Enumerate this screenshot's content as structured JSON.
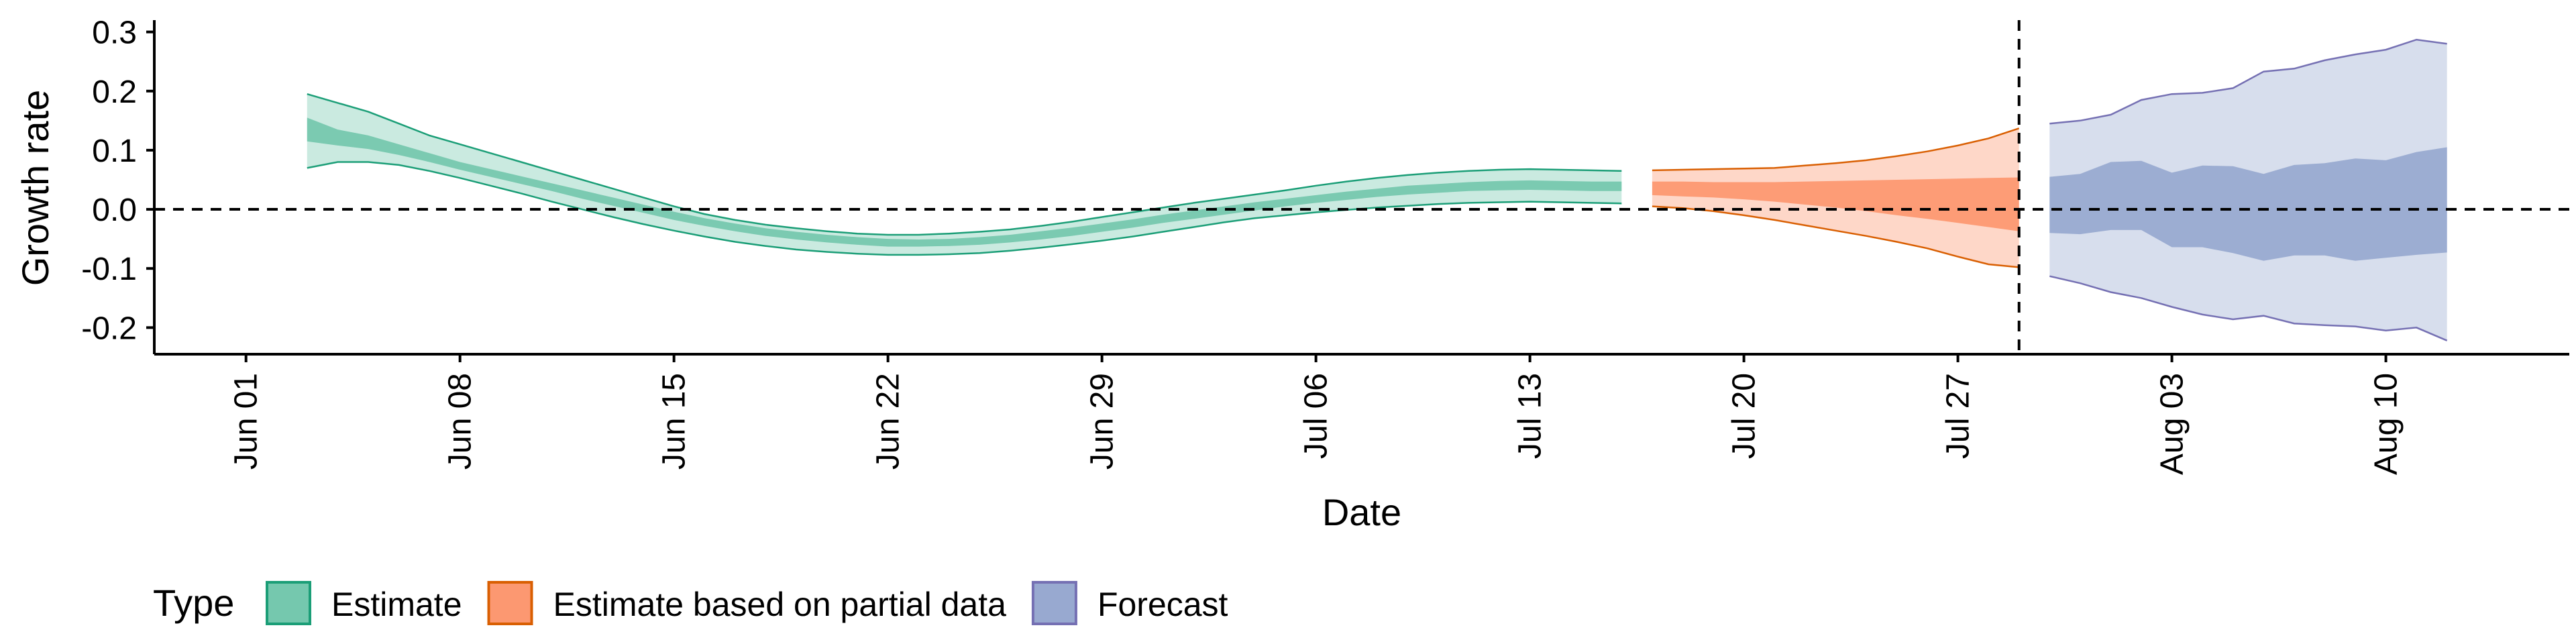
{
  "chart_data": {
    "type": "area",
    "xlabel": "Date",
    "ylabel": "Growth rate",
    "legend_title": "Type",
    "legend_position": "bottom",
    "xlim": [
      "2020-05-29",
      "2020-08-16"
    ],
    "ylim": [
      -0.245,
      0.32
    ],
    "x_ticks": [
      "2020-06-01",
      "2020-06-08",
      "2020-06-15",
      "2020-06-22",
      "2020-06-29",
      "2020-07-06",
      "2020-07-13",
      "2020-07-20",
      "2020-07-27",
      "2020-08-03",
      "2020-08-10"
    ],
    "x_tick_labels": [
      "Jun 01",
      "Jun 08",
      "Jun 15",
      "Jun 22",
      "Jun 29",
      "Jul 06",
      "Jul 13",
      "Jul 20",
      "Jul 27",
      "Aug 03",
      "Aug 10"
    ],
    "y_ticks": [
      -0.2,
      -0.1,
      0.0,
      0.1,
      0.2,
      0.3
    ],
    "y_tick_labels": [
      "-0.2",
      "-0.1",
      "0.0",
      "0.1",
      "0.2",
      "0.3"
    ],
    "reference_lines": {
      "horizontal_y": 0.0,
      "vertical_x": "2020-07-29"
    },
    "series": [
      {
        "name": "Estimate",
        "color": "#1b9e77",
        "fill_color": "#66c2a5",
        "x": [
          "2020-06-03",
          "2020-06-04",
          "2020-06-05",
          "2020-06-06",
          "2020-06-07",
          "2020-06-08",
          "2020-06-09",
          "2020-06-10",
          "2020-06-11",
          "2020-06-12",
          "2020-06-13",
          "2020-06-14",
          "2020-06-15",
          "2020-06-16",
          "2020-06-17",
          "2020-06-18",
          "2020-06-19",
          "2020-06-20",
          "2020-06-21",
          "2020-06-22",
          "2020-06-23",
          "2020-06-24",
          "2020-06-25",
          "2020-06-26",
          "2020-06-27",
          "2020-06-28",
          "2020-06-29",
          "2020-06-30",
          "2020-07-01",
          "2020-07-02",
          "2020-07-03",
          "2020-07-04",
          "2020-07-05",
          "2020-07-06",
          "2020-07-07",
          "2020-07-08",
          "2020-07-09",
          "2020-07-10",
          "2020-07-11",
          "2020-07-12",
          "2020-07-13",
          "2020-07-14",
          "2020-07-15",
          "2020-07-16"
        ],
        "upper_90": [
          0.195,
          0.18,
          0.165,
          0.145,
          0.125,
          0.11,
          0.095,
          0.08,
          0.065,
          0.05,
          0.035,
          0.02,
          0.005,
          -0.008,
          -0.018,
          -0.026,
          -0.032,
          -0.037,
          -0.041,
          -0.043,
          -0.043,
          -0.041,
          -0.038,
          -0.034,
          -0.028,
          -0.021,
          -0.013,
          -0.005,
          0.003,
          0.011,
          0.018,
          0.025,
          0.032,
          0.04,
          0.047,
          0.053,
          0.058,
          0.062,
          0.065,
          0.067,
          0.068,
          0.067,
          0.066,
          0.065
        ],
        "upper_50": [
          0.155,
          0.135,
          0.125,
          0.11,
          0.095,
          0.08,
          0.068,
          0.056,
          0.044,
          0.032,
          0.02,
          0.008,
          -0.004,
          -0.015,
          -0.024,
          -0.032,
          -0.038,
          -0.043,
          -0.047,
          -0.05,
          -0.051,
          -0.05,
          -0.047,
          -0.043,
          -0.037,
          -0.031,
          -0.024,
          -0.017,
          -0.009,
          -0.002,
          0.005,
          0.012,
          0.018,
          0.024,
          0.03,
          0.035,
          0.04,
          0.043,
          0.046,
          0.048,
          0.049,
          0.048,
          0.047,
          0.047
        ],
        "lower_50": [
          0.115,
          0.108,
          0.102,
          0.092,
          0.08,
          0.067,
          0.055,
          0.043,
          0.031,
          0.018,
          0.006,
          -0.006,
          -0.018,
          -0.028,
          -0.037,
          -0.045,
          -0.051,
          -0.056,
          -0.06,
          -0.063,
          -0.063,
          -0.062,
          -0.06,
          -0.056,
          -0.051,
          -0.045,
          -0.038,
          -0.031,
          -0.023,
          -0.016,
          -0.009,
          -0.002,
          0.005,
          0.011,
          0.016,
          0.021,
          0.025,
          0.028,
          0.031,
          0.032,
          0.033,
          0.032,
          0.031,
          0.031
        ],
        "lower_90": [
          0.07,
          0.08,
          0.08,
          0.075,
          0.065,
          0.053,
          0.04,
          0.027,
          0.013,
          0.0,
          -0.013,
          -0.025,
          -0.036,
          -0.046,
          -0.055,
          -0.062,
          -0.068,
          -0.072,
          -0.075,
          -0.077,
          -0.077,
          -0.076,
          -0.074,
          -0.07,
          -0.065,
          -0.059,
          -0.053,
          -0.046,
          -0.038,
          -0.03,
          -0.022,
          -0.015,
          -0.01,
          -0.005,
          -0.001,
          0.003,
          0.006,
          0.009,
          0.011,
          0.012,
          0.013,
          0.012,
          0.011,
          0.01
        ]
      },
      {
        "name": "Estimate based on partial data",
        "color": "#d95f02",
        "fill_color": "#fc8d62",
        "x": [
          "2020-07-17",
          "2020-07-18",
          "2020-07-19",
          "2020-07-20",
          "2020-07-21",
          "2020-07-22",
          "2020-07-23",
          "2020-07-24",
          "2020-07-25",
          "2020-07-26",
          "2020-07-27",
          "2020-07-28",
          "2020-07-29"
        ],
        "upper_90": [
          0.066,
          0.067,
          0.068,
          0.069,
          0.07,
          0.074,
          0.078,
          0.083,
          0.09,
          0.098,
          0.108,
          0.12,
          0.137
        ],
        "upper_50": [
          0.047,
          0.047,
          0.046,
          0.046,
          0.046,
          0.047,
          0.048,
          0.049,
          0.05,
          0.051,
          0.052,
          0.053,
          0.054
        ],
        "lower_50": [
          0.024,
          0.022,
          0.02,
          0.017,
          0.013,
          0.008,
          0.003,
          -0.003,
          -0.01,
          -0.016,
          -0.023,
          -0.03,
          -0.037
        ],
        "lower_90": [
          0.005,
          0.002,
          -0.003,
          -0.01,
          -0.018,
          -0.027,
          -0.036,
          -0.045,
          -0.055,
          -0.066,
          -0.08,
          -0.093,
          -0.098
        ]
      },
      {
        "name": "Forecast",
        "color": "#7570b3",
        "fill_color": "#8da0cb",
        "x": [
          "2020-07-30",
          "2020-07-31",
          "2020-08-01",
          "2020-08-02",
          "2020-08-03",
          "2020-08-04",
          "2020-08-05",
          "2020-08-06",
          "2020-08-07",
          "2020-08-08",
          "2020-08-09",
          "2020-08-10",
          "2020-08-11",
          "2020-08-12"
        ],
        "upper_90": [
          0.145,
          0.15,
          0.16,
          0.185,
          0.195,
          0.197,
          0.205,
          0.233,
          0.238,
          0.252,
          0.262,
          0.27,
          0.287,
          0.28
        ],
        "upper_50": [
          0.055,
          0.06,
          0.08,
          0.082,
          0.062,
          0.074,
          0.073,
          0.06,
          0.075,
          0.078,
          0.086,
          0.083,
          0.097,
          0.105
        ],
        "lower_50": [
          -0.04,
          -0.042,
          -0.035,
          -0.035,
          -0.064,
          -0.064,
          -0.074,
          -0.087,
          -0.078,
          -0.078,
          -0.087,
          -0.082,
          -0.077,
          -0.073
        ],
        "lower_90": [
          -0.113,
          -0.125,
          -0.14,
          -0.15,
          -0.165,
          -0.178,
          -0.186,
          -0.18,
          -0.193,
          -0.196,
          -0.198,
          -0.205,
          -0.2,
          -0.222
        ]
      }
    ]
  }
}
